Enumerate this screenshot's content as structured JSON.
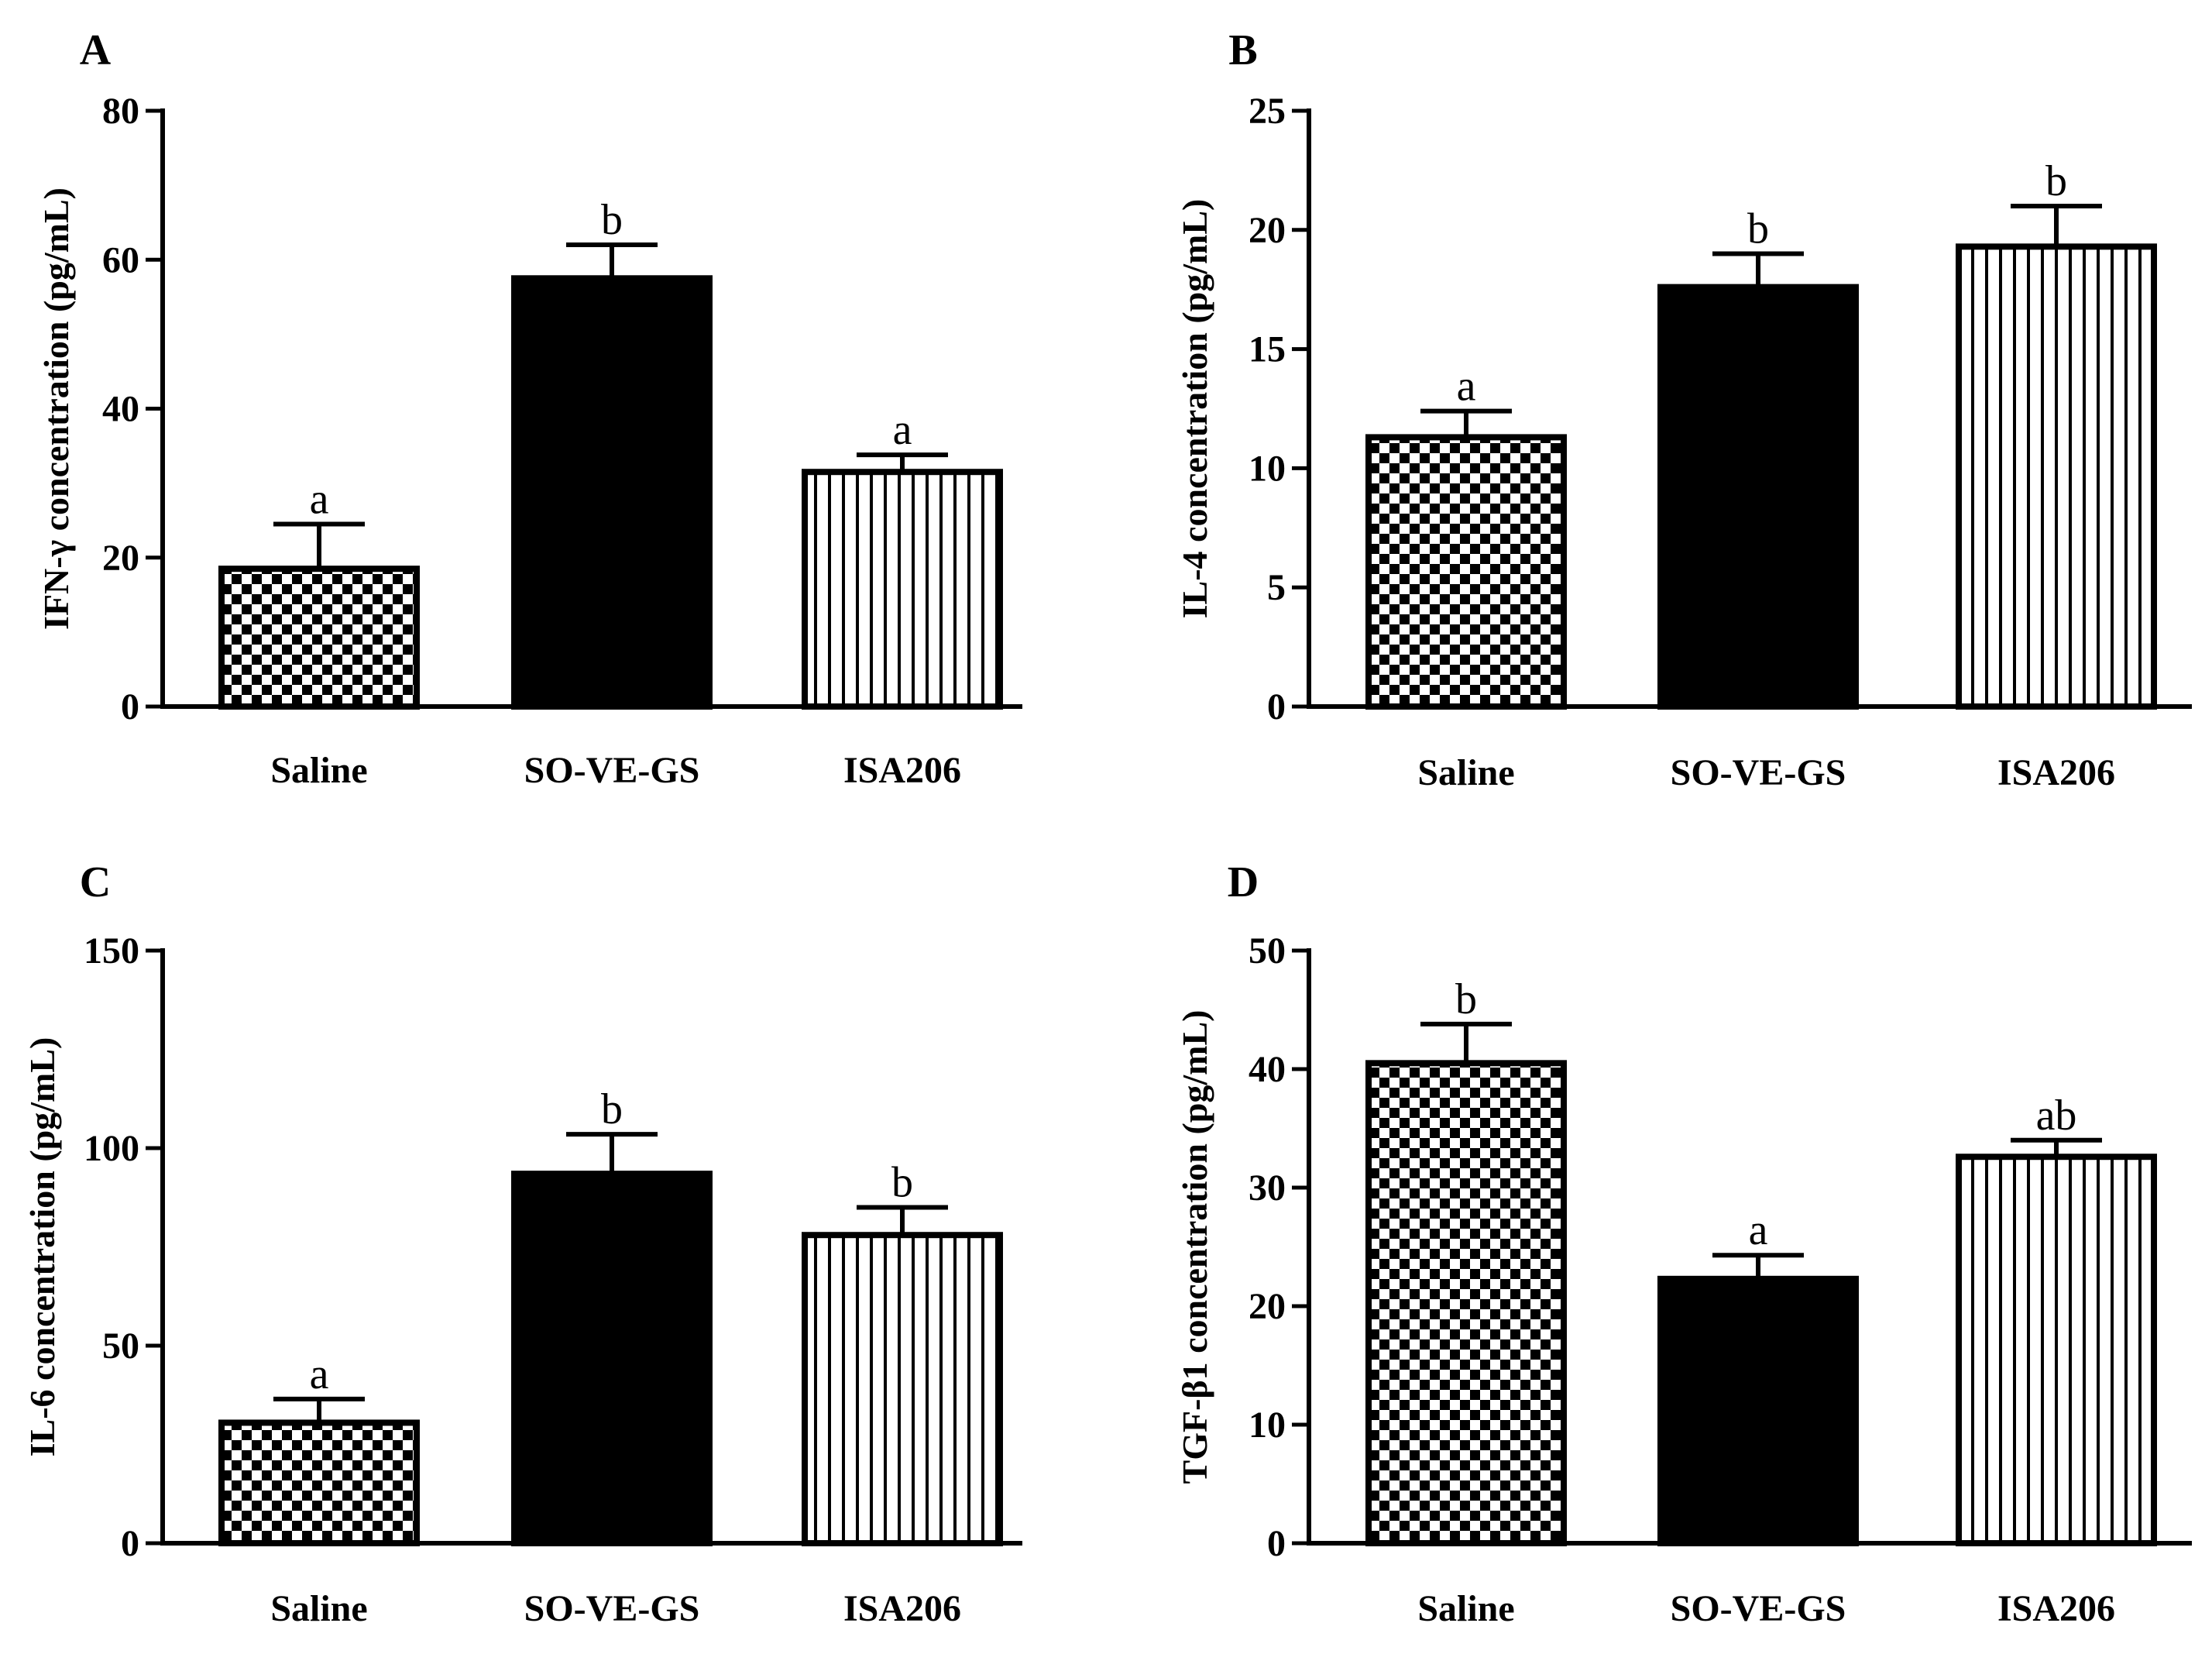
{
  "chart_data": [
    {
      "type": "bar",
      "panel": "A",
      "ylabel": "IFN-γ concentration (pg/mL)",
      "xlabel": "",
      "ylim": [
        0,
        80
      ],
      "yticks": [
        "0",
        "20",
        "40",
        "60",
        "80"
      ],
      "categories": [
        "Saline",
        "SO-VE-GS",
        "ISA206"
      ],
      "values": [
        18.5,
        57.5,
        31.5
      ],
      "errors": [
        6.0,
        4.5,
        2.3
      ],
      "significance": [
        "a",
        "b",
        "a"
      ],
      "patterns": [
        "checker",
        "solid",
        "vstripe"
      ]
    },
    {
      "type": "bar",
      "panel": "B",
      "ylabel": "IL-4 concentration (pg/mL)",
      "xlabel": "",
      "ylim": [
        0,
        25
      ],
      "yticks": [
        "0",
        "5",
        "10",
        "15",
        "20",
        "25"
      ],
      "categories": [
        "Saline",
        "SO-VE-GS",
        "ISA206"
      ],
      "values": [
        11.3,
        17.6,
        19.3
      ],
      "errors": [
        1.1,
        1.4,
        1.7
      ],
      "significance": [
        "a",
        "b",
        "b"
      ],
      "patterns": [
        "checker",
        "solid",
        "vstripe"
      ]
    },
    {
      "type": "bar",
      "panel": "C",
      "ylabel": "IL-6 concentration (pg/mL)",
      "xlabel": "",
      "ylim": [
        0,
        150
      ],
      "yticks": [
        "0",
        "50",
        "100",
        "150"
      ],
      "categories": [
        "Saline",
        "SO-VE-GS",
        "ISA206"
      ],
      "values": [
        30.5,
        93.5,
        78.0
      ],
      "errors": [
        6.0,
        10.0,
        7.0
      ],
      "significance": [
        "a",
        "b",
        "b"
      ],
      "patterns": [
        "checker",
        "solid",
        "vstripe"
      ]
    },
    {
      "type": "bar",
      "panel": "D",
      "ylabel": "TGF-β1 concentration (pg/mL)",
      "xlabel": "",
      "ylim": [
        0,
        50
      ],
      "yticks": [
        "0",
        "10",
        "20",
        "30",
        "40",
        "50"
      ],
      "categories": [
        "Saline",
        "SO-VE-GS",
        "ISA206"
      ],
      "values": [
        40.5,
        22.3,
        32.6
      ],
      "errors": [
        3.3,
        2.0,
        1.4
      ],
      "significance": [
        "b",
        "a",
        "ab"
      ],
      "patterns": [
        "checker",
        "solid",
        "vstripe"
      ]
    }
  ]
}
